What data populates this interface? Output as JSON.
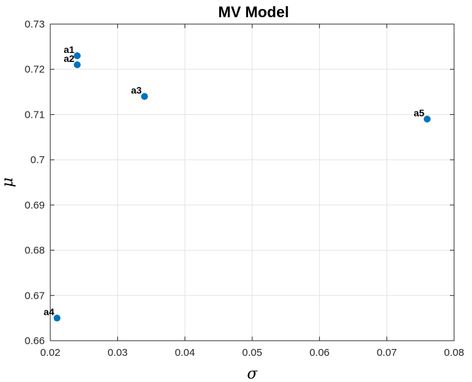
{
  "chart_data": {
    "type": "scatter",
    "title": "MV Model",
    "xlabel": "σ",
    "ylabel": "μ",
    "xlim": [
      0.02,
      0.08
    ],
    "ylim": [
      0.66,
      0.73
    ],
    "x_ticks": [
      "0.02",
      "0.03",
      "0.04",
      "0.05",
      "0.06",
      "0.07",
      "0.08"
    ],
    "y_ticks": [
      "0.66",
      "0.67",
      "0.68",
      "0.69",
      "0.7",
      "0.71",
      "0.72",
      "0.73"
    ],
    "grid": true,
    "points": [
      {
        "label": "a1",
        "x": 0.024,
        "y": 0.723
      },
      {
        "label": "a2",
        "x": 0.024,
        "y": 0.721
      },
      {
        "label": "a3",
        "x": 0.034,
        "y": 0.714
      },
      {
        "label": "a4",
        "x": 0.021,
        "y": 0.665
      },
      {
        "label": "a5",
        "x": 0.076,
        "y": 0.709
      }
    ],
    "marker_color": "#0072BD"
  }
}
